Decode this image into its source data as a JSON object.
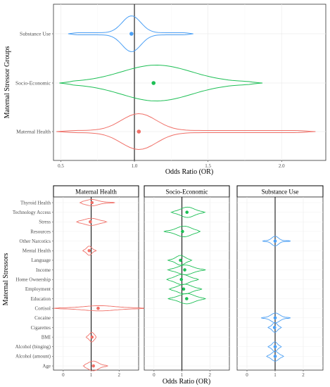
{
  "chart_data": [
    {
      "type": "violin",
      "xlabel": "Odds Ratio (OR)",
      "ylabel": "Maternal Stressor Groups",
      "xticks": [
        0.5,
        1.0,
        1.5,
        2.0
      ],
      "xlim": [
        0.45,
        2.3
      ],
      "reference_line": 1.0,
      "series": [
        {
          "category": "Substance Use",
          "color": "#4a9ff5",
          "point": 0.98,
          "spread": [
            0.55,
            1.4
          ],
          "bulk": [
            0.9,
            1.06
          ]
        },
        {
          "category": "Socio-Economic",
          "color": "#1dbf55",
          "point": 1.13,
          "spread": [
            0.49,
            1.87
          ],
          "bulk": [
            0.85,
            1.45
          ]
        },
        {
          "category": "Maternal Health",
          "color": "#f07068",
          "point": 1.03,
          "spread": [
            0.47,
            2.23
          ],
          "bulk": [
            0.88,
            1.18
          ]
        }
      ]
    },
    {
      "type": "violin",
      "xlabel": "Odds Ratio (OR)",
      "ylabel": "Maternal Stressors",
      "xticks": [
        0,
        1,
        2
      ],
      "xlim": [
        -0.35,
        2.7
      ],
      "reference_line": 1,
      "facets": [
        "Maternal Health",
        "Socio-Economic",
        "Substance Use"
      ],
      "facet_colors": [
        "#f07068",
        "#1dbf55",
        "#4a9ff5"
      ],
      "rows": [
        "Thyroid Health",
        "Technology Access",
        "Stress",
        "Resources",
        "Other Narcotics",
        "Mental Health",
        "Language",
        "Income",
        "Home Ownership",
        "Employment",
        "Education",
        "Cortisol",
        "Cocaine",
        "Cigarettes",
        "BMI",
        "Alcohol (binging)",
        "Alcohol (amount)",
        "Age"
      ],
      "points": [
        {
          "facet": 0,
          "row": "Thyroid Health",
          "or": 1.03,
          "range": [
            0.6,
            1.85
          ],
          "w": 0.28,
          "wide": [
            0.75,
            1.3
          ]
        },
        {
          "facet": 0,
          "row": "Stress",
          "or": 0.97,
          "range": [
            0.48,
            1.55
          ],
          "w": 0.32,
          "wide": [
            0.7,
            1.3
          ]
        },
        {
          "facet": 0,
          "row": "Mental Health",
          "or": 0.93,
          "range": [
            0.7,
            1.18
          ],
          "w": 0.42,
          "wide": [
            0.82,
            1.04
          ]
        },
        {
          "facet": 0,
          "row": "Cortisol",
          "or": 1.25,
          "range": [
            -0.35,
            2.95
          ],
          "w": 0.22,
          "wide": [
            0.6,
            2.0
          ]
        },
        {
          "facet": 0,
          "row": "BMI",
          "or": 1.03,
          "range": [
            0.82,
            1.18
          ],
          "w": 0.45,
          "wide": [
            0.92,
            1.12
          ]
        },
        {
          "facet": 0,
          "row": "Age",
          "or": 1.08,
          "range": [
            0.72,
            1.6
          ],
          "w": 0.45,
          "wide": [
            0.85,
            1.3
          ]
        },
        {
          "facet": 1,
          "row": "Technology Access",
          "or": 1.18,
          "range": [
            0.62,
            1.82
          ],
          "w": 0.48,
          "wide": [
            0.9,
            1.5
          ]
        },
        {
          "facet": 1,
          "row": "Resources",
          "or": 1.02,
          "range": [
            0.35,
            1.65
          ],
          "w": 0.5,
          "wide": [
            0.75,
            1.4
          ]
        },
        {
          "facet": 1,
          "row": "Language",
          "or": 0.95,
          "range": [
            0.5,
            1.35
          ],
          "w": 0.45,
          "wide": [
            0.75,
            1.15
          ]
        },
        {
          "facet": 1,
          "row": "Income",
          "or": 1.1,
          "range": [
            0.5,
            1.85
          ],
          "w": 0.45,
          "wide": [
            0.8,
            1.45
          ]
        },
        {
          "facet": 1,
          "row": "Home Ownership",
          "or": 0.98,
          "range": [
            0.45,
            1.6
          ],
          "w": 0.48,
          "wide": [
            0.72,
            1.3
          ]
        },
        {
          "facet": 1,
          "row": "Employment",
          "or": 1.06,
          "range": [
            0.55,
            1.72
          ],
          "w": 0.45,
          "wide": [
            0.8,
            1.4
          ]
        },
        {
          "facet": 1,
          "row": "Education",
          "or": 1.17,
          "range": [
            0.5,
            1.85
          ],
          "w": 0.48,
          "wide": [
            0.85,
            1.5
          ]
        },
        {
          "facet": 2,
          "row": "Other Narcotics",
          "or": 1.0,
          "range": [
            0.55,
            1.55
          ],
          "w": 0.45,
          "wide": [
            0.85,
            1.15
          ]
        },
        {
          "facet": 2,
          "row": "Cocaine",
          "or": 1.0,
          "range": [
            0.5,
            1.55
          ],
          "w": 0.45,
          "wide": [
            0.82,
            1.2
          ]
        },
        {
          "facet": 2,
          "row": "Cigarettes",
          "or": 0.98,
          "range": [
            0.75,
            1.22
          ],
          "w": 0.45,
          "wide": [
            0.88,
            1.1
          ]
        },
        {
          "facet": 2,
          "row": "Alcohol (binging)",
          "or": 1.0,
          "range": [
            0.75,
            1.22
          ],
          "w": 0.45,
          "wide": [
            0.88,
            1.1
          ]
        },
        {
          "facet": 2,
          "row": "Alcohol (amount)",
          "or": 1.0,
          "range": [
            0.7,
            1.3
          ],
          "w": 0.45,
          "wide": [
            0.85,
            1.15
          ]
        }
      ]
    }
  ]
}
